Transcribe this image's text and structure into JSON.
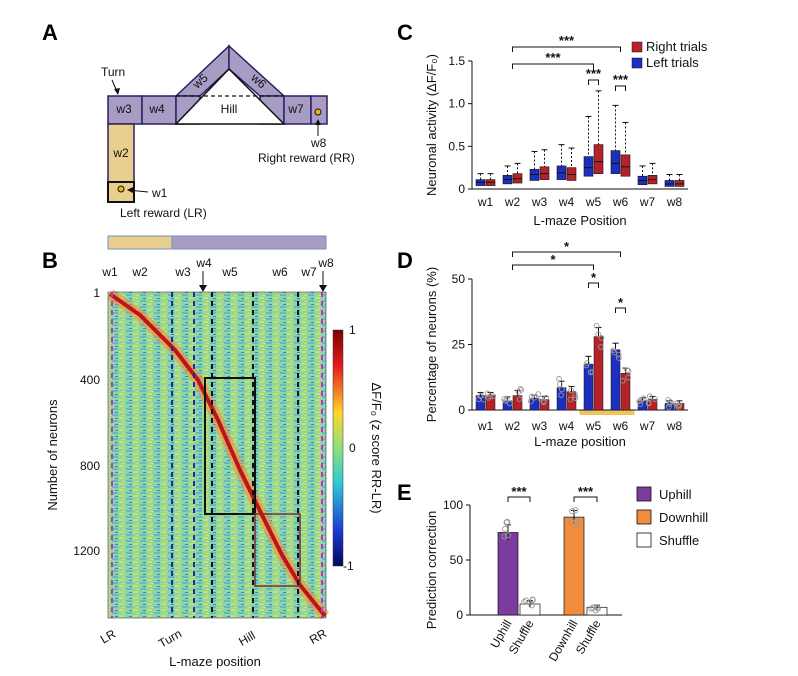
{
  "panels": {
    "a": "A",
    "b": "B",
    "c": "C",
    "d": "D",
    "e": "E"
  },
  "colors": {
    "purple": "#a99cc4",
    "tan": "#e9cf8d",
    "right": "#b5232a",
    "left": "#1c2fbf",
    "uphill": "#7b3ca0",
    "downhill": "#f08c3c"
  },
  "maze": {
    "segments": [
      "w1",
      "w2",
      "w3",
      "w4",
      "w5",
      "w6",
      "w7",
      "w8"
    ],
    "hill": "Hill",
    "turn": "Turn",
    "left_reward": "Left reward (LR)",
    "right_reward": "Right reward (RR)"
  },
  "heatmap": {
    "top_labels": [
      "w1",
      "w2",
      "w3",
      "w4",
      "w5",
      "w6",
      "w7",
      "w8"
    ],
    "ylabel": "Number of neurons",
    "yticks": [
      "1",
      "400",
      "800",
      "1200"
    ],
    "xlabel": "L-maze position",
    "xticks": [
      "LR",
      "Turn",
      "Hill",
      "RR"
    ],
    "colorbar_label": "ΔF/F₀ (z score RR-LR)",
    "colorbar_ticks": [
      "1",
      "0",
      "-1"
    ]
  },
  "chart_data": [
    {
      "id": "C",
      "type": "box",
      "categories": [
        "w1",
        "w2",
        "w3",
        "w4",
        "w5",
        "w6",
        "w7",
        "w8"
      ],
      "ylim": [
        0,
        1.5
      ],
      "yticks": [
        "0",
        "0.5",
        "1.0",
        "1.5"
      ],
      "ylabel": "Neuronal activity (ΔF/F₀)",
      "xlabel": "L-maze Position",
      "series": [
        {
          "name": "Left trials",
          "boxes": [
            [
              0.0,
              0.04,
              0.08,
              0.11,
              0.18
            ],
            [
              0.0,
              0.06,
              0.11,
              0.16,
              0.27
            ],
            [
              0.0,
              0.1,
              0.17,
              0.23,
              0.44
            ],
            [
              0.0,
              0.11,
              0.19,
              0.27,
              0.52
            ],
            [
              0.0,
              0.15,
              0.25,
              0.38,
              0.85
            ],
            [
              0.0,
              0.18,
              0.3,
              0.45,
              0.98
            ],
            [
              0.0,
              0.05,
              0.1,
              0.15,
              0.27
            ],
            [
              0.0,
              0.03,
              0.06,
              0.1,
              0.17
            ]
          ]
        },
        {
          "name": "Right trials",
          "boxes": [
            [
              0.0,
              0.04,
              0.08,
              0.11,
              0.18
            ],
            [
              0.0,
              0.07,
              0.12,
              0.18,
              0.3
            ],
            [
              0.0,
              0.11,
              0.18,
              0.26,
              0.46
            ],
            [
              0.0,
              0.1,
              0.17,
              0.25,
              0.48
            ],
            [
              0.0,
              0.18,
              0.32,
              0.52,
              1.15
            ],
            [
              0.0,
              0.15,
              0.26,
              0.4,
              0.78
            ],
            [
              0.0,
              0.06,
              0.11,
              0.16,
              0.3
            ],
            [
              0.0,
              0.03,
              0.06,
              0.1,
              0.17
            ]
          ]
        }
      ],
      "significance": [
        {
          "from": "w2",
          "to": "w6",
          "label": "***"
        },
        {
          "from": "w2",
          "to": "w5",
          "label": "***"
        },
        {
          "from": "w5-left",
          "to": "w5-right",
          "label": "***"
        },
        {
          "from": "w6-left",
          "to": "w6-right",
          "label": "***"
        }
      ],
      "legend_position": "top-right"
    },
    {
      "id": "D",
      "type": "bar",
      "categories": [
        "w1",
        "w2",
        "w3",
        "w4",
        "w5",
        "w6",
        "w7",
        "w8"
      ],
      "ylim": [
        0,
        50
      ],
      "yticks": [
        "0",
        "25",
        "50"
      ],
      "ylabel": "Percentage of neurons (%)",
      "xlabel": "L-maze position",
      "series": [
        {
          "name": "Left trials",
          "values": [
            5.5,
            3.5,
            4.5,
            8.5,
            17.5,
            23,
            3.5,
            2.5
          ],
          "errors": [
            1.2,
            1.5,
            1.2,
            2.5,
            3,
            2.5,
            1.2,
            1
          ]
        },
        {
          "name": "Right trials",
          "values": [
            5.5,
            5.5,
            4,
            7,
            28,
            14,
            4,
            2.5
          ],
          "errors": [
            1.2,
            2,
            1.2,
            2,
            3.5,
            2,
            1.2,
            1
          ]
        }
      ],
      "significance": [
        {
          "from": "w2",
          "to": "w6",
          "label": "*"
        },
        {
          "from": "w2",
          "to": "w5",
          "label": "*"
        },
        {
          "from": "w5-left",
          "to": "w5-right",
          "label": "*"
        },
        {
          "from": "w6-left",
          "to": "w6-right",
          "label": "*"
        }
      ]
    },
    {
      "id": "E",
      "type": "bar",
      "categories": [
        "Uphill",
        "Shuffle",
        "Downhill",
        "Shuffle"
      ],
      "values": [
        75,
        10,
        89,
        7
      ],
      "errors": [
        7,
        3,
        6,
        2
      ],
      "ylim": [
        0,
        100
      ],
      "yticks": [
        "0",
        "50",
        "100"
      ],
      "ylabel": "Prediction correction",
      "legend": [
        "Uphill",
        "Downhill",
        "Shuffle"
      ],
      "significance": [
        {
          "from": "Uphill",
          "to": "Shuffle",
          "label": "***"
        },
        {
          "from": "Downhill",
          "to": "Shuffle",
          "label": "***"
        }
      ]
    }
  ]
}
